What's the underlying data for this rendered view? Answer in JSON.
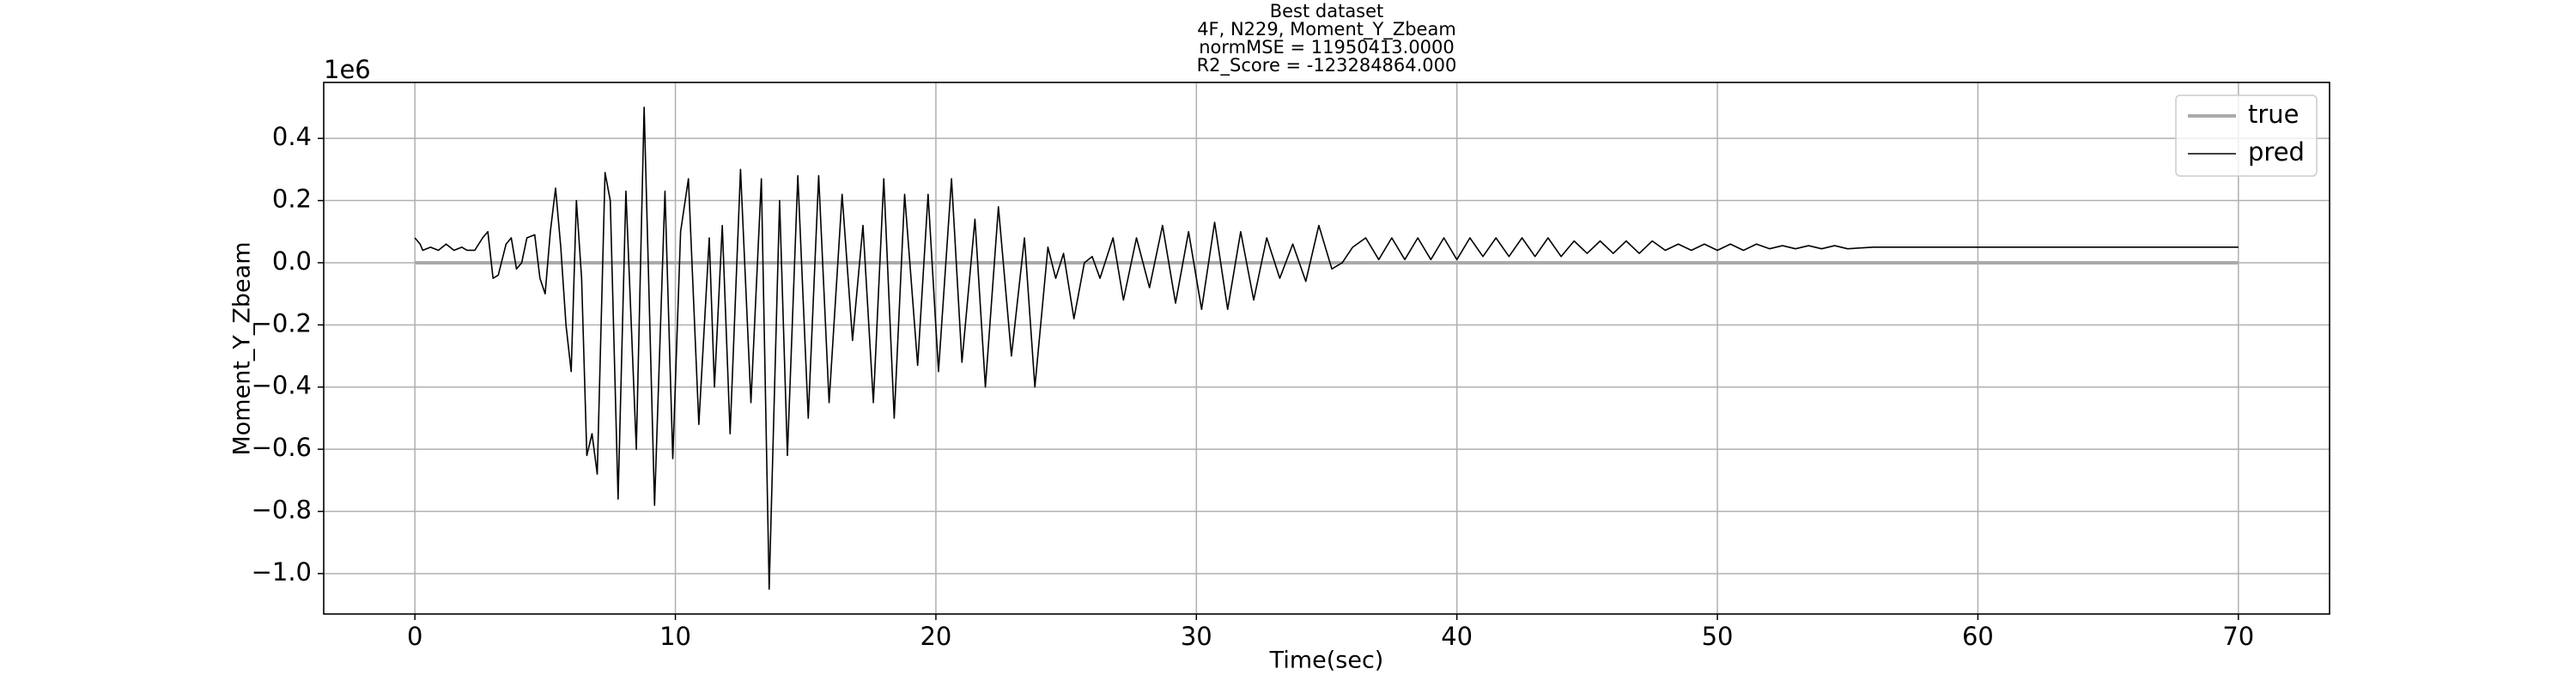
{
  "chart_data": {
    "type": "line",
    "title": [
      "Best dataset",
      "4F, N229, Moment_Y_Zbeam",
      "normMSE = 11950413.0000",
      "R2_Score = -123284864.000"
    ],
    "x_label": "Time(sec)",
    "y_label": "Moment_Y_Zbeam",
    "y_offset_label": "1e6",
    "xlim": [
      -3.5,
      73.5
    ],
    "ylim": [
      -1.13,
      0.58
    ],
    "xticks": [
      0,
      10,
      20,
      30,
      40,
      50,
      60,
      70
    ],
    "yticks": [
      {
        "value": -1.0,
        "label": "−1.0"
      },
      {
        "value": -0.8,
        "label": "−0.8"
      },
      {
        "value": -0.6,
        "label": "−0.6"
      },
      {
        "value": -0.4,
        "label": "−0.4"
      },
      {
        "value": -0.2,
        "label": "−0.2"
      },
      {
        "value": 0.0,
        "label": "0.0"
      },
      {
        "value": 0.2,
        "label": "0.2"
      },
      {
        "value": 0.4,
        "label": "0.4"
      }
    ],
    "grid": true,
    "legend": "upper right",
    "series": [
      {
        "name": "true",
        "color": "#aaaaaa",
        "width": 4,
        "x": [
          0,
          70
        ],
        "values": [
          0,
          0
        ]
      },
      {
        "name": "pred",
        "color": "#000000",
        "width": 1.6,
        "x": [
          0,
          0.2,
          0.3,
          0.6,
          0.9,
          1.2,
          1.5,
          1.8,
          2.0,
          2.3,
          2.6,
          2.8,
          3.0,
          3.2,
          3.5,
          3.7,
          3.9,
          4.1,
          4.3,
          4.6,
          4.8,
          5.0,
          5.2,
          5.4,
          5.6,
          5.8,
          6.0,
          6.2,
          6.4,
          6.6,
          6.8,
          7.0,
          7.3,
          7.5,
          7.8,
          8.1,
          8.5,
          8.8,
          9.2,
          9.6,
          9.9,
          10.2,
          10.5,
          10.9,
          11.3,
          11.5,
          11.8,
          12.1,
          12.5,
          12.9,
          13.3,
          13.6,
          14.0,
          14.3,
          14.7,
          15.1,
          15.5,
          15.9,
          16.4,
          16.8,
          17.2,
          17.6,
          18.0,
          18.4,
          18.8,
          19.3,
          19.7,
          20.1,
          20.6,
          21.0,
          21.5,
          21.9,
          22.4,
          22.9,
          23.4,
          23.8,
          24.3,
          24.6,
          24.9,
          25.3,
          25.7,
          26.0,
          26.3,
          26.8,
          27.2,
          27.7,
          28.2,
          28.7,
          29.2,
          29.7,
          30.2,
          30.7,
          31.2,
          31.7,
          32.2,
          32.7,
          33.2,
          33.7,
          34.2,
          34.7,
          35.2,
          35.6,
          36.0,
          36.5,
          37.0,
          37.5,
          38.0,
          38.5,
          39.0,
          39.5,
          40.0,
          40.5,
          41.0,
          41.5,
          42.0,
          42.5,
          43.0,
          43.5,
          44.0,
          44.5,
          45.0,
          45.5,
          46.0,
          46.5,
          47.0,
          47.5,
          48.0,
          48.5,
          49.0,
          49.5,
          50.0,
          50.5,
          51.0,
          51.5,
          52.0,
          52.5,
          53.0,
          53.5,
          54.0,
          54.5,
          55.0,
          56.0,
          70.0
        ],
        "values": [
          0.08,
          0.06,
          0.04,
          0.05,
          0.04,
          0.06,
          0.04,
          0.05,
          0.04,
          0.04,
          0.08,
          0.1,
          -0.05,
          -0.04,
          0.06,
          0.08,
          -0.02,
          0.0,
          0.08,
          0.09,
          -0.05,
          -0.1,
          0.1,
          0.24,
          0.05,
          -0.2,
          -0.35,
          0.2,
          -0.05,
          -0.62,
          -0.55,
          -0.68,
          0.29,
          0.2,
          -0.76,
          0.23,
          -0.6,
          0.5,
          -0.78,
          0.23,
          -0.63,
          0.1,
          0.27,
          -0.52,
          0.08,
          -0.4,
          0.12,
          -0.55,
          0.3,
          -0.45,
          0.27,
          -1.05,
          0.2,
          -0.62,
          0.28,
          -0.5,
          0.28,
          -0.45,
          0.22,
          -0.25,
          0.12,
          -0.45,
          0.27,
          -0.5,
          0.22,
          -0.33,
          0.22,
          -0.35,
          0.27,
          -0.32,
          0.14,
          -0.4,
          0.18,
          -0.3,
          0.08,
          -0.4,
          0.05,
          -0.05,
          0.03,
          -0.18,
          0.0,
          0.02,
          -0.05,
          0.08,
          -0.12,
          0.08,
          -0.08,
          0.12,
          -0.13,
          0.1,
          -0.15,
          0.13,
          -0.15,
          0.1,
          -0.12,
          0.08,
          -0.05,
          0.06,
          -0.06,
          0.12,
          -0.02,
          0.0,
          0.05,
          0.08,
          0.01,
          0.08,
          0.01,
          0.08,
          0.01,
          0.08,
          0.01,
          0.08,
          0.02,
          0.08,
          0.02,
          0.08,
          0.02,
          0.08,
          0.02,
          0.07,
          0.03,
          0.07,
          0.03,
          0.07,
          0.03,
          0.07,
          0.04,
          0.06,
          0.04,
          0.06,
          0.04,
          0.06,
          0.04,
          0.06,
          0.045,
          0.055,
          0.045,
          0.055,
          0.045,
          0.055,
          0.045,
          0.05,
          0.05
        ]
      }
    ]
  }
}
